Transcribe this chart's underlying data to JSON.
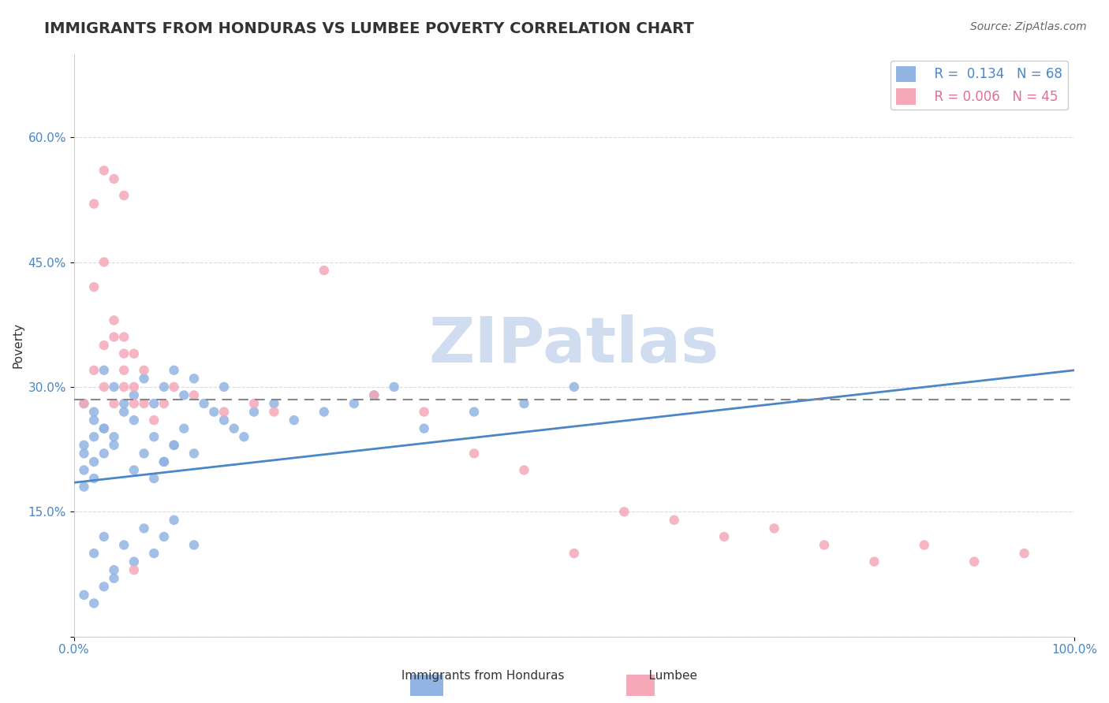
{
  "title": "IMMIGRANTS FROM HONDURAS VS LUMBEE POVERTY CORRELATION CHART",
  "source": "Source: ZipAtlas.com",
  "xlabel": "",
  "ylabel": "Poverty",
  "xlim": [
    0,
    1.0
  ],
  "ylim": [
    0,
    0.7
  ],
  "yticks": [
    0,
    0.15,
    0.3,
    0.45,
    0.6
  ],
  "ytick_labels": [
    "",
    "15.0%",
    "30.0%",
    "45.0%",
    "60.0%"
  ],
  "xtick_labels": [
    "0.0%",
    "100.0%"
  ],
  "background_color": "#ffffff",
  "blue_color": "#92b4e3",
  "pink_color": "#f4a8b8",
  "blue_R": 0.134,
  "blue_N": 68,
  "pink_R": 0.006,
  "pink_N": 45,
  "blue_scatter_x": [
    0.01,
    0.02,
    0.01,
    0.03,
    0.02,
    0.04,
    0.05,
    0.03,
    0.06,
    0.02,
    0.01,
    0.01,
    0.02,
    0.03,
    0.04,
    0.02,
    0.01,
    0.03,
    0.05,
    0.04,
    0.06,
    0.07,
    0.08,
    0.09,
    0.1,
    0.11,
    0.12,
    0.13,
    0.14,
    0.15,
    0.06,
    0.07,
    0.08,
    0.09,
    0.1,
    0.11,
    0.12,
    0.08,
    0.09,
    0.1,
    0.15,
    0.16,
    0.17,
    0.18,
    0.2,
    0.22,
    0.25,
    0.28,
    0.3,
    0.32,
    0.02,
    0.03,
    0.04,
    0.05,
    0.06,
    0.07,
    0.08,
    0.09,
    0.1,
    0.12,
    0.01,
    0.02,
    0.03,
    0.04,
    0.35,
    0.4,
    0.45,
    0.5
  ],
  "blue_scatter_y": [
    0.22,
    0.26,
    0.28,
    0.25,
    0.27,
    0.3,
    0.28,
    0.32,
    0.26,
    0.24,
    0.2,
    0.18,
    0.19,
    0.22,
    0.24,
    0.21,
    0.23,
    0.25,
    0.27,
    0.23,
    0.29,
    0.31,
    0.28,
    0.3,
    0.32,
    0.29,
    0.31,
    0.28,
    0.27,
    0.3,
    0.2,
    0.22,
    0.24,
    0.21,
    0.23,
    0.25,
    0.22,
    0.19,
    0.21,
    0.23,
    0.26,
    0.25,
    0.24,
    0.27,
    0.28,
    0.26,
    0.27,
    0.28,
    0.29,
    0.3,
    0.1,
    0.12,
    0.08,
    0.11,
    0.09,
    0.13,
    0.1,
    0.12,
    0.14,
    0.11,
    0.05,
    0.04,
    0.06,
    0.07,
    0.25,
    0.27,
    0.28,
    0.3
  ],
  "pink_scatter_x": [
    0.01,
    0.02,
    0.03,
    0.02,
    0.03,
    0.04,
    0.05,
    0.03,
    0.04,
    0.05,
    0.06,
    0.04,
    0.05,
    0.06,
    0.07,
    0.05,
    0.06,
    0.07,
    0.08,
    0.09,
    0.1,
    0.12,
    0.15,
    0.18,
    0.2,
    0.25,
    0.3,
    0.35,
    0.4,
    0.45,
    0.5,
    0.55,
    0.6,
    0.65,
    0.7,
    0.75,
    0.8,
    0.85,
    0.9,
    0.95,
    0.02,
    0.03,
    0.04,
    0.05,
    0.06
  ],
  "pink_scatter_y": [
    0.28,
    0.32,
    0.35,
    0.42,
    0.45,
    0.38,
    0.36,
    0.3,
    0.28,
    0.32,
    0.34,
    0.36,
    0.3,
    0.28,
    0.32,
    0.34,
    0.3,
    0.28,
    0.26,
    0.28,
    0.3,
    0.29,
    0.27,
    0.28,
    0.27,
    0.44,
    0.29,
    0.27,
    0.22,
    0.2,
    0.1,
    0.15,
    0.14,
    0.12,
    0.13,
    0.11,
    0.09,
    0.11,
    0.09,
    0.1,
    0.52,
    0.56,
    0.55,
    0.53,
    0.08
  ],
  "blue_trend_x": [
    0.0,
    1.0
  ],
  "blue_trend_y_start": 0.185,
  "blue_trend_y_end": 0.32,
  "pink_trend_y": 0.285,
  "watermark": "ZIPatlas",
  "watermark_color": "#d0ddf0",
  "legend_box_color": "#ffffff",
  "legend_border_color": "#cccccc",
  "grid_color": "#cccccc",
  "title_fontsize": 14,
  "axis_label_fontsize": 11,
  "tick_fontsize": 11,
  "source_fontsize": 10
}
